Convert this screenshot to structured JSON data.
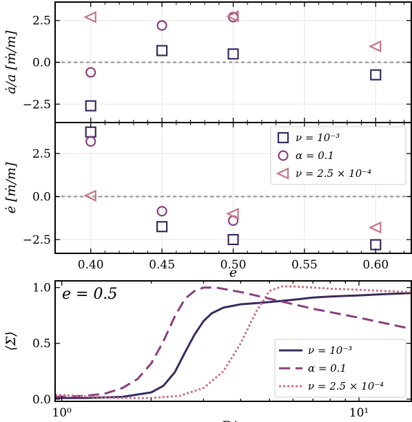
{
  "colors": {
    "nu_1e3": "#3a2a5e",
    "alpha_01": "#8a3e7e",
    "nu_2p5e4": "#c97386",
    "zero_line": "#999999",
    "grid": "#e6e6e6"
  },
  "chart_data": [
    {
      "id": "adot",
      "type": "scatter",
      "ylabel": "ȧ/a [ṁ/m]",
      "xlim": [
        0.375,
        0.625
      ],
      "ylim": [
        -3.6,
        3.6
      ],
      "xticks": [
        0.4,
        0.45,
        0.5,
        0.55,
        0.6
      ],
      "yticks": [
        -2.5,
        0.0,
        2.5
      ],
      "ytick_labels": [
        "−2.5",
        "0.0",
        "2.5"
      ],
      "hline": 0,
      "grid": true,
      "series": [
        {
          "name": "ν = 10⁻³",
          "marker": "square",
          "x": [
            0.4,
            0.45,
            0.5,
            0.6
          ],
          "y": [
            -2.6,
            0.7,
            0.5,
            -0.75
          ]
        },
        {
          "name": "α = 0.1",
          "marker": "circle",
          "x": [
            0.4,
            0.45,
            0.5
          ],
          "y": [
            -0.6,
            2.2,
            2.7
          ]
        },
        {
          "name": "ν = 2.5 × 10⁻⁴",
          "marker": "triangle-left",
          "x": [
            0.4,
            0.5,
            0.6
          ],
          "y": [
            2.7,
            2.75,
            0.95
          ]
        }
      ]
    },
    {
      "id": "edot",
      "type": "scatter",
      "xlabel": "e",
      "ylabel": "ė [ṁ/m]",
      "xlim": [
        0.375,
        0.625
      ],
      "ylim": [
        -3.3,
        4.3
      ],
      "xticks": [
        0.4,
        0.45,
        0.5,
        0.55,
        0.6
      ],
      "xtick_labels": [
        "0.40",
        "0.45",
        "0.50",
        "0.55",
        "0.60"
      ],
      "yticks": [
        -2.5,
        0.0,
        2.5
      ],
      "ytick_labels": [
        "−2.5",
        "0.0",
        "2.5"
      ],
      "hline": 0,
      "grid": true,
      "legend": "upper-right",
      "series": [
        {
          "name": "ν = 10⁻³",
          "marker": "square",
          "x": [
            0.4,
            0.45,
            0.5,
            0.6
          ],
          "y": [
            3.75,
            -1.75,
            -2.5,
            -2.8
          ]
        },
        {
          "name": "α = 0.1",
          "marker": "circle",
          "x": [
            0.4,
            0.45,
            0.5
          ],
          "y": [
            3.2,
            -0.85,
            -1.4
          ]
        },
        {
          "name": "ν = 2.5 × 10⁻⁴",
          "marker": "triangle-left",
          "x": [
            0.4,
            0.5,
            0.6
          ],
          "y": [
            0.05,
            -1.0,
            -1.8
          ]
        }
      ]
    },
    {
      "id": "sigma",
      "type": "line",
      "xlabel": "R/a",
      "ylabel": "⟨Σ⟩",
      "xscale": "log",
      "xlim": [
        0.95,
        15.0
      ],
      "ylim": [
        -0.02,
        1.06
      ],
      "xticks": [
        1,
        10
      ],
      "xtick_labels": [
        "10⁰",
        "10¹"
      ],
      "yticks": [
        0.0,
        0.5,
        1.0
      ],
      "ytick_labels": [
        "0.0",
        "0.5",
        "1.0"
      ],
      "annotation": "e = 0.5",
      "legend": "lower-right",
      "series": [
        {
          "name": "ν = 10⁻³",
          "style": "solid",
          "x": [
            0.95,
            1.2,
            1.6,
            2.0,
            2.2,
            2.4,
            2.6,
            2.8,
            3.0,
            3.2,
            3.5,
            4.0,
            4.5,
            5.0,
            6.0,
            7.0,
            8.0,
            10.0,
            12.0,
            15.0
          ],
          "y": [
            0.01,
            0.01,
            0.02,
            0.06,
            0.12,
            0.24,
            0.42,
            0.58,
            0.7,
            0.77,
            0.82,
            0.85,
            0.86,
            0.87,
            0.89,
            0.91,
            0.92,
            0.93,
            0.94,
            0.95
          ]
        },
        {
          "name": "α = 0.1",
          "style": "dashed",
          "x": [
            0.95,
            1.2,
            1.4,
            1.6,
            1.8,
            2.0,
            2.2,
            2.4,
            2.6,
            2.8,
            3.0,
            3.3,
            4.0,
            5.0,
            7.0,
            10.0,
            15.0
          ],
          "y": [
            0.02,
            0.03,
            0.05,
            0.1,
            0.18,
            0.32,
            0.52,
            0.74,
            0.9,
            0.97,
            1.0,
            1.0,
            0.96,
            0.9,
            0.81,
            0.73,
            0.63
          ]
        },
        {
          "name": "ν = 2.5 × 10⁻⁴",
          "style": "dotted",
          "x": [
            0.95,
            1.5,
            2.0,
            2.5,
            3.0,
            3.5,
            4.0,
            4.5,
            5.0,
            5.5,
            6.0,
            7.0,
            8.0,
            10.0,
            12.0,
            15.0
          ],
          "y": [
            0.04,
            0.01,
            0.01,
            0.03,
            0.1,
            0.25,
            0.5,
            0.78,
            0.97,
            1.01,
            1.01,
            1.0,
            0.99,
            0.98,
            0.97,
            0.96
          ]
        }
      ]
    }
  ]
}
